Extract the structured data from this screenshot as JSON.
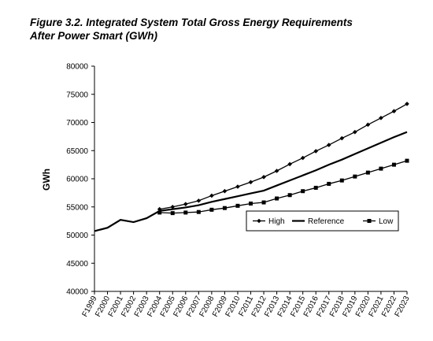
{
  "chart_data": {
    "type": "line",
    "title": [
      "Figure 3.2. Integrated System Total Gross Energy Requirements",
      "After Power Smart (GWh)"
    ],
    "y_label": "GWh",
    "categories": [
      "F1999",
      "F2000",
      "F2001",
      "F2002",
      "F2003",
      "F2004",
      "F2005",
      "F2006",
      "F2007",
      "F2008",
      "F2009",
      "F2010",
      "F2011",
      "F2012",
      "F2013",
      "F2014",
      "F2015",
      "F2016",
      "F2017",
      "F2018",
      "F2019",
      "F2020",
      "F2021",
      "F2022",
      "F2023"
    ],
    "series": [
      {
        "name": "High",
        "color": "#000000",
        "marker": "diamond",
        "values": [
          null,
          null,
          null,
          null,
          null,
          54600,
          55000,
          55500,
          56100,
          57000,
          57800,
          58600,
          59400,
          60300,
          61400,
          62600,
          63700,
          64900,
          66000,
          67200,
          68300,
          69600,
          70800,
          72000,
          73300
        ]
      },
      {
        "name": "Reference",
        "color": "#000000",
        "marker": "none",
        "values": [
          50700,
          51300,
          52700,
          52300,
          53000,
          54300,
          54600,
          54900,
          55300,
          55900,
          56400,
          56900,
          57400,
          57900,
          58800,
          59700,
          60600,
          61500,
          62500,
          63400,
          64400,
          65400,
          66400,
          67400,
          68300
        ]
      },
      {
        "name": "Low",
        "color": "#000000",
        "marker": "square",
        "values": [
          null,
          null,
          null,
          null,
          null,
          54000,
          53900,
          54000,
          54100,
          54500,
          54800,
          55200,
          55600,
          55800,
          56500,
          57100,
          57800,
          58400,
          59100,
          59700,
          60400,
          61100,
          61800,
          62500,
          63200
        ]
      }
    ],
    "ylim": [
      40000,
      80000
    ],
    "yticks": [
      40000,
      45000,
      50000,
      55000,
      60000,
      65000,
      70000,
      75000,
      80000
    ],
    "grid": false,
    "legend": "right"
  }
}
